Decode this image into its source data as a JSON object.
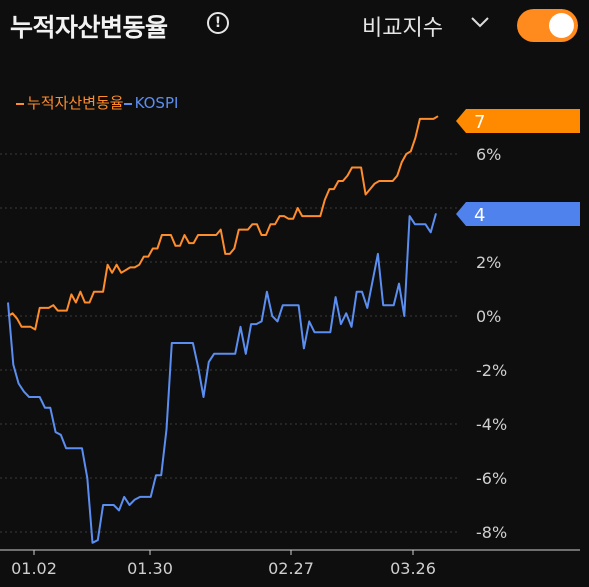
{
  "header": {
    "title": "누적자산변동율",
    "info_icon": "info-circle-icon",
    "compare_label": "비교지수",
    "chevron_icon": "chevron-down-icon",
    "toggle_on": true,
    "toggle_color": "#ff8a1d"
  },
  "chart_data": {
    "type": "line",
    "title": "",
    "xlabel": "",
    "ylabel": "",
    "ylim": [
      -8.5,
      7.8
    ],
    "yticks": [
      6,
      4,
      2,
      0,
      -2,
      -4,
      -6,
      -8
    ],
    "ytick_labels": [
      "6%",
      "",
      "2%",
      "0%",
      "-2%",
      "-4%",
      "-6%",
      "-8%"
    ],
    "xtick_labels": [
      "01.02",
      "01.30",
      "02.27",
      "03.26"
    ],
    "legend": [
      "누적자산변동율",
      "KOSPI"
    ],
    "legend_placement": "top-left",
    "grid": true,
    "end_labels": [
      "7",
      "4"
    ],
    "series": [
      {
        "name": "누적자산변동율",
        "color": "#ff8d2b",
        "values": [
          0.0,
          0.1,
          -0.1,
          -0.4,
          -0.4,
          -0.4,
          -0.5,
          0.3,
          0.3,
          0.3,
          0.4,
          0.2,
          0.2,
          0.2,
          0.8,
          0.5,
          0.9,
          0.5,
          0.5,
          0.9,
          0.9,
          0.9,
          1.9,
          1.6,
          1.9,
          1.6,
          1.7,
          1.8,
          1.8,
          1.9,
          2.2,
          2.2,
          2.5,
          2.5,
          3.0,
          3.0,
          3.0,
          2.6,
          2.6,
          3.0,
          2.7,
          2.7,
          3.0,
          3.0,
          3.0,
          3.0,
          3.0,
          3.2,
          2.3,
          2.3,
          2.5,
          3.2,
          3.2,
          3.2,
          3.4,
          3.4,
          3.0,
          3.0,
          3.4,
          3.4,
          3.7,
          3.7,
          3.6,
          3.6,
          4.0,
          3.7,
          3.7,
          3.7,
          3.7,
          3.7,
          4.3,
          4.7,
          4.7,
          5.0,
          5.0,
          5.2,
          5.5,
          5.5,
          5.5,
          4.5,
          4.7,
          4.9,
          5.0,
          5.0,
          5.0,
          5.0,
          5.2,
          5.7,
          6.0,
          6.1,
          6.6,
          7.3,
          7.3,
          7.3,
          7.3,
          7.4
        ]
      },
      {
        "name": "KOSPI",
        "color": "#5b8ef0",
        "values": [
          0.5,
          -1.8,
          -2.5,
          -2.8,
          -3.0,
          -3.0,
          -3.0,
          -3.4,
          -3.4,
          -4.3,
          -4.4,
          -4.9,
          -4.9,
          -4.9,
          -4.9,
          -6.0,
          -8.4,
          -8.3,
          -7.0,
          -7.0,
          -7.0,
          -7.2,
          -6.7,
          -7.0,
          -6.8,
          -6.7,
          -6.7,
          -6.7,
          -5.9,
          -5.9,
          -4.2,
          -1.0,
          -1.0,
          -1.0,
          -1.0,
          -1.0,
          -1.9,
          -3.0,
          -1.7,
          -1.4,
          -1.4,
          -1.4,
          -1.4,
          -1.4,
          -0.4,
          -1.4,
          -0.3,
          -0.3,
          -0.2,
          0.9,
          0.0,
          -0.2,
          0.4,
          0.4,
          0.4,
          0.4,
          -1.2,
          -0.2,
          -0.6,
          -0.6,
          -0.6,
          -0.6,
          0.7,
          -0.3,
          0.1,
          -0.4,
          0.9,
          0.9,
          0.3,
          1.3,
          2.3,
          0.4,
          0.4,
          0.4,
          1.2,
          0.0,
          3.7,
          3.4,
          3.4,
          3.4,
          3.1,
          3.8
        ]
      }
    ]
  }
}
